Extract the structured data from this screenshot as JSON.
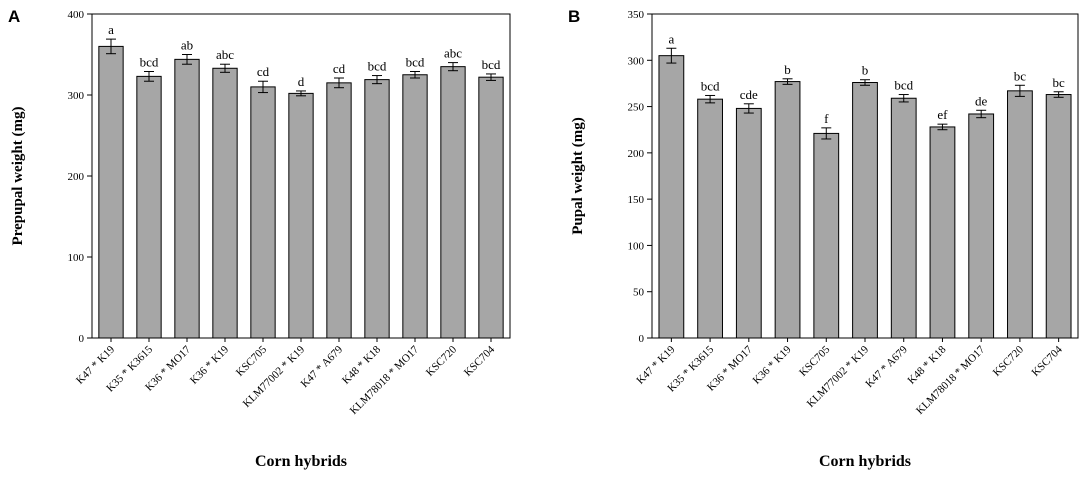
{
  "chart_data": [
    {
      "type": "bar",
      "panel_label": "A",
      "xlabel": "Corn hybrids",
      "ylabel": "Prepupal weight (mg)",
      "ylim": [
        0,
        400
      ],
      "yticks": [
        0,
        100,
        200,
        300,
        400
      ],
      "categories": [
        "K47 * K19",
        "K35 * K3615",
        "K36 * MO17",
        "K36 * K19",
        "KSC705",
        "KLM77002 * K19",
        "K47 * A679",
        "K48 * K18",
        "KLM78018 * MO17",
        "KSC720",
        "KSC704"
      ],
      "values": [
        360,
        323,
        344,
        333,
        310,
        302,
        315,
        319,
        325,
        335,
        322
      ],
      "errors": [
        9,
        6,
        6,
        5,
        7,
        3,
        6,
        5,
        4,
        5,
        4
      ],
      "letters": [
        "a",
        "bcd",
        "ab",
        "abc",
        "cd",
        "d",
        "cd",
        "bcd",
        "bcd",
        "abc",
        "bcd"
      ],
      "grid": false,
      "bar_color": "#a6a6a6"
    },
    {
      "type": "bar",
      "panel_label": "B",
      "xlabel": "Corn hybrids",
      "ylabel": "Pupal weight (mg)",
      "ylim": [
        0,
        350
      ],
      "yticks": [
        0,
        50,
        100,
        150,
        200,
        250,
        300,
        350
      ],
      "categories": [
        "K47 * K19",
        "K35 * K3615",
        "K36 * MO17",
        "K36 * K19",
        "KSC705",
        "KLM77002 * K19",
        "K47 * A679",
        "K48 * K18",
        "KLM78018 * MO17",
        "KSC720",
        "KSC704"
      ],
      "values": [
        305,
        258,
        248,
        277,
        221,
        276,
        259,
        228,
        242,
        267,
        263
      ],
      "errors": [
        8,
        4,
        5,
        3,
        6,
        3,
        4,
        3,
        4,
        6,
        3
      ],
      "letters": [
        "a",
        "bcd",
        "cde",
        "b",
        "f",
        "b",
        "bcd",
        "ef",
        "de",
        "bc",
        "bc"
      ],
      "grid": false,
      "bar_color": "#a6a6a6"
    }
  ]
}
